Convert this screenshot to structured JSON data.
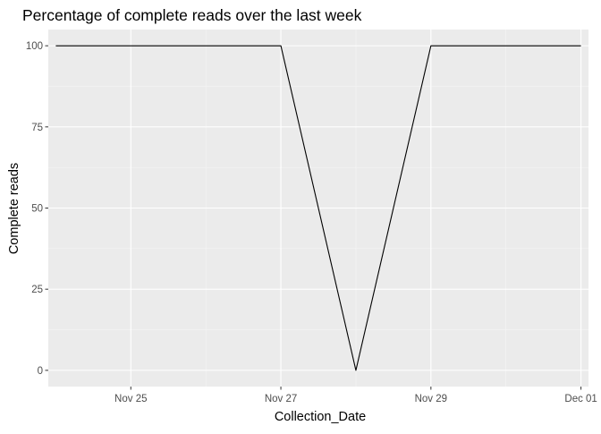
{
  "chart_data": {
    "type": "line",
    "title": "Percentage of complete reads over the last week",
    "xlabel": "Collection_Date",
    "ylabel": "Complete reads",
    "x_tick_labels": [
      "Nov 25",
      "Nov 27",
      "Nov 29",
      "Dec 01"
    ],
    "x_ticks": [
      "2019-11-25",
      "2019-11-27",
      "2019-11-29",
      "2019-12-01"
    ],
    "y_ticks": [
      0,
      25,
      50,
      75,
      100
    ],
    "y_tick_labels": [
      "0",
      "25",
      "50",
      "75",
      "100"
    ],
    "xlim": [
      "2019-11-23 21:36",
      "2019-12-01 02:24"
    ],
    "ylim": [
      -5,
      105
    ],
    "series": [
      {
        "x": [
          "2019-11-24",
          "2019-11-27",
          "2019-11-28",
          "2019-11-29",
          "2019-12-01"
        ],
        "y": [
          100,
          100,
          0,
          100,
          100
        ]
      }
    ],
    "grid": true,
    "legend": "none",
    "colors": {
      "panel_background": "#ebebeb",
      "grid_major": "#ffffff",
      "grid_minor": "#f5f5f5",
      "line": "#000000",
      "tick_label": "#4d4d4d",
      "tick_mark": "#333333"
    }
  }
}
